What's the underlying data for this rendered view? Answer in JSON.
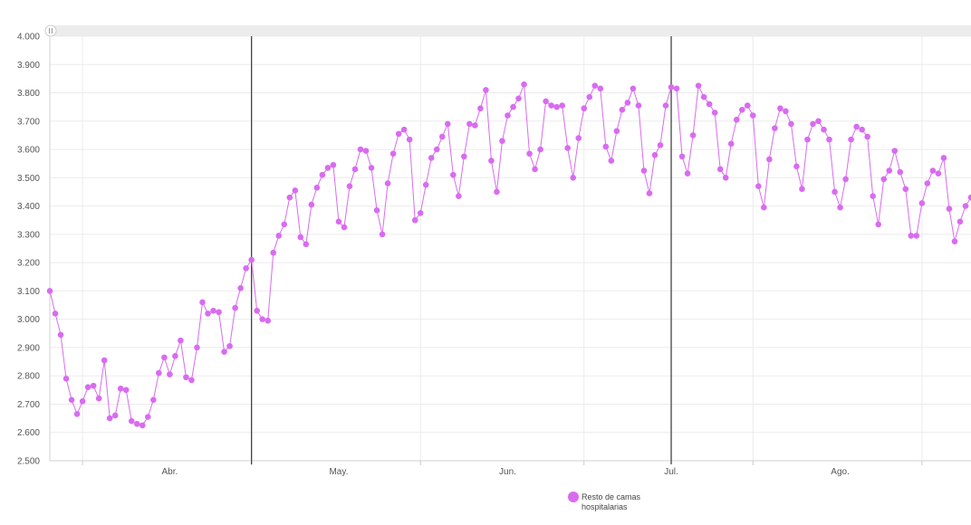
{
  "chart_data": {
    "type": "line",
    "y_ticks": [
      "4.000",
      "3.900",
      "3.800",
      "3.700",
      "3.600",
      "3.500",
      "3.400",
      "3.300",
      "3.200",
      "3.100",
      "3.000",
      "2.900",
      "2.800",
      "2.700",
      "2.600",
      "2.500"
    ],
    "ylim": [
      2500,
      4000
    ],
    "x_tick_labels": [
      {
        "label": "Abr.",
        "index": 22
      },
      {
        "label": "May.",
        "index": 53
      },
      {
        "label": "Jun.",
        "index": 84
      },
      {
        "label": "Jul.",
        "index": 114
      },
      {
        "label": "Ago.",
        "index": 145
      }
    ],
    "vertical_markers": [
      37,
      114
    ],
    "grid": true,
    "legend": {
      "placement": "bottom-center",
      "label_line1": "Resto de camas",
      "label_line2": "hospitalarias"
    },
    "series": [
      {
        "name": "Resto de camas hospitalarias",
        "color": "#d96bf0",
        "values": [
          3100,
          3020,
          2945,
          2790,
          2715,
          2665,
          2710,
          2760,
          2765,
          2720,
          2855,
          2650,
          2660,
          2755,
          2750,
          2640,
          2630,
          2625,
          2655,
          2715,
          2810,
          2865,
          2805,
          2870,
          2925,
          2795,
          2785,
          2900,
          3060,
          3020,
          3030,
          3025,
          2885,
          2905,
          3040,
          3110,
          3180,
          3210,
          3030,
          3000,
          2995,
          3235,
          3295,
          3335,
          3430,
          3455,
          3290,
          3265,
          3405,
          3465,
          3510,
          3535,
          3545,
          3345,
          3325,
          3470,
          3530,
          3600,
          3595,
          3535,
          3385,
          3300,
          3480,
          3585,
          3655,
          3670,
          3635,
          3350,
          3375,
          3475,
          3570,
          3600,
          3645,
          3690,
          3510,
          3435,
          3575,
          3690,
          3685,
          3745,
          3810,
          3560,
          3450,
          3630,
          3720,
          3750,
          3780,
          3830,
          3585,
          3530,
          3600,
          3770,
          3755,
          3750,
          3755,
          3605,
          3500,
          3640,
          3745,
          3785,
          3825,
          3815,
          3610,
          3560,
          3665,
          3740,
          3765,
          3815,
          3755,
          3525,
          3445,
          3580,
          3615,
          3755,
          3820,
          3815,
          3575,
          3515,
          3650,
          3825,
          3785,
          3760,
          3730,
          3530,
          3500,
          3620,
          3705,
          3740,
          3755,
          3720,
          3470,
          3395,
          3565,
          3675,
          3745,
          3735,
          3690,
          3540,
          3460,
          3635,
          3690,
          3700,
          3670,
          3635,
          3450,
          3395,
          3495,
          3635,
          3680,
          3670,
          3645,
          3435,
          3335,
          3495,
          3525,
          3595,
          3520,
          3460,
          3295,
          3295,
          3410,
          3480,
          3525,
          3515,
          3570,
          3390,
          3275,
          3345,
          3400,
          3430
        ]
      }
    ]
  }
}
